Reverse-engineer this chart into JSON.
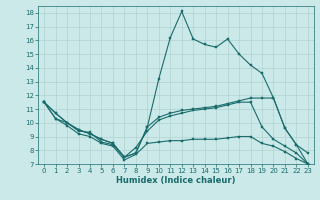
{
  "xlabel": "Humidex (Indice chaleur)",
  "bg_color": "#cce9e9",
  "line_color": "#1a6b6b",
  "grid_color": "#aacccc",
  "xlim": [
    -0.5,
    23.5
  ],
  "ylim": [
    7,
    18.5
  ],
  "xticks": [
    0,
    1,
    2,
    3,
    4,
    5,
    6,
    7,
    8,
    9,
    10,
    11,
    12,
    13,
    14,
    15,
    16,
    17,
    18,
    19,
    20,
    21,
    22,
    23
  ],
  "yticks": [
    7,
    8,
    9,
    10,
    11,
    12,
    13,
    14,
    15,
    16,
    17,
    18
  ],
  "line1_x": [
    0,
    1,
    2,
    3,
    4,
    5,
    6,
    7,
    8,
    9,
    10,
    11,
    12,
    13,
    14,
    15,
    16,
    17,
    18,
    19,
    20,
    21,
    22,
    23
  ],
  "line1_y": [
    11.5,
    10.7,
    10.0,
    9.5,
    9.2,
    8.8,
    8.5,
    7.5,
    7.8,
    9.7,
    13.2,
    16.2,
    18.1,
    16.1,
    15.7,
    15.5,
    16.1,
    15.0,
    14.2,
    13.6,
    11.8,
    9.6,
    8.4,
    7.8
  ],
  "line2_x": [
    0,
    1,
    2,
    3,
    4,
    5,
    6,
    7,
    8,
    9,
    10,
    11,
    12,
    13,
    14,
    15,
    16,
    17,
    18,
    19,
    20,
    21,
    22,
    23
  ],
  "line2_y": [
    11.5,
    10.7,
    10.0,
    9.5,
    9.2,
    8.8,
    8.5,
    7.5,
    7.8,
    9.7,
    10.4,
    10.7,
    10.9,
    11.0,
    11.1,
    11.2,
    11.4,
    11.6,
    11.8,
    11.8,
    11.8,
    9.6,
    8.4,
    7.0
  ],
  "line3_x": [
    0,
    1,
    2,
    3,
    4,
    5,
    6,
    7,
    8,
    9,
    10,
    11,
    12,
    13,
    14,
    15,
    16,
    17,
    18,
    19,
    20,
    21,
    22,
    23
  ],
  "line3_y": [
    11.5,
    10.3,
    10.0,
    9.4,
    9.3,
    8.6,
    8.4,
    7.5,
    8.2,
    9.4,
    10.2,
    10.5,
    10.7,
    10.9,
    11.0,
    11.1,
    11.3,
    11.5,
    11.5,
    9.7,
    8.8,
    8.3,
    7.8,
    7.0
  ],
  "line4_x": [
    0,
    1,
    2,
    3,
    4,
    5,
    6,
    7,
    8,
    9,
    10,
    11,
    12,
    13,
    14,
    15,
    16,
    17,
    18,
    19,
    20,
    21,
    22,
    23
  ],
  "line4_y": [
    11.5,
    10.3,
    9.8,
    9.2,
    9.0,
    8.5,
    8.3,
    7.3,
    7.7,
    8.5,
    8.6,
    8.7,
    8.7,
    8.8,
    8.8,
    8.8,
    8.9,
    9.0,
    9.0,
    8.5,
    8.3,
    7.9,
    7.4,
    7.0
  ]
}
